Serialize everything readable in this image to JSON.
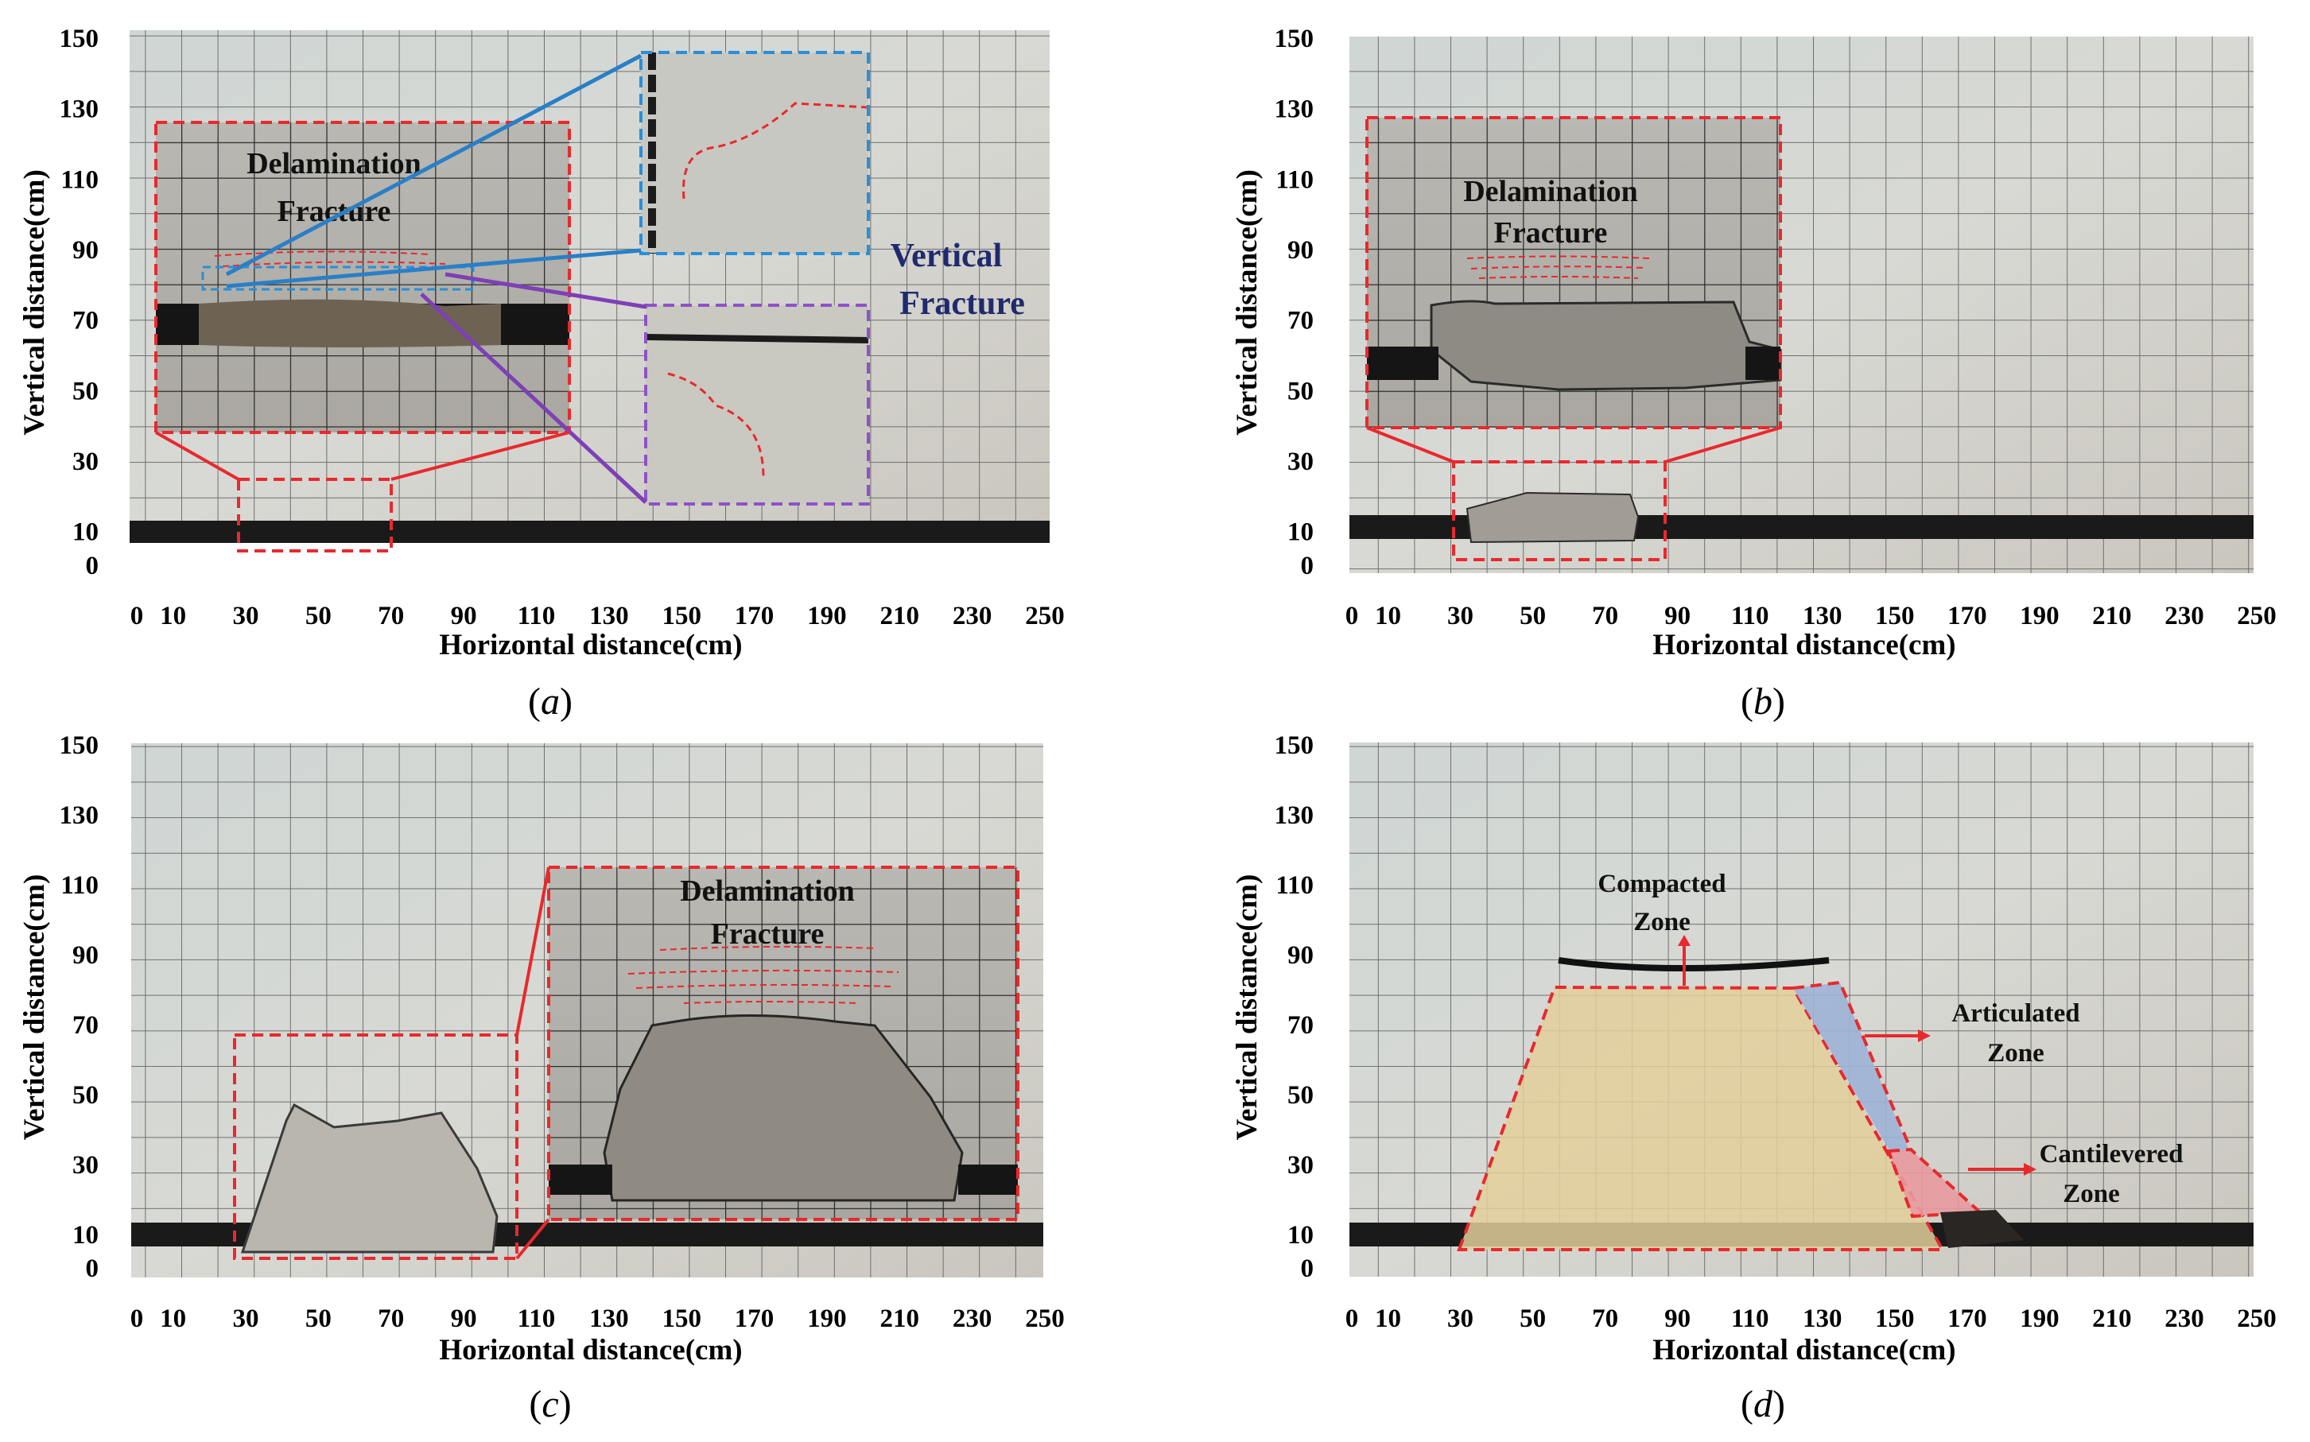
{
  "figure": {
    "x_axis_label": "Horizontal distance(cm)",
    "y_axis_label": "Vertical distance(cm)",
    "x_ticks": [
      "0",
      "10",
      "30",
      "50",
      "70",
      "90",
      "110",
      "130",
      "150",
      "170",
      "190",
      "210",
      "230",
      "250"
    ],
    "y_ticks": [
      "150",
      "130",
      "110",
      "90",
      "70",
      "50",
      "30",
      "10",
      "0"
    ],
    "panels": [
      {
        "caption_open": "(",
        "caption_letter": "a",
        "caption_close": ")",
        "labels": {
          "delam_line1": "Delamination",
          "delam_line2": "Fracture",
          "vert_line1": "Vertical",
          "vert_line2": "Fracture"
        }
      },
      {
        "caption_open": "(",
        "caption_letter": "b",
        "caption_close": ")",
        "labels": {
          "delam_line1": "Delamination",
          "delam_line2": "Fracture"
        }
      },
      {
        "caption_open": "(",
        "caption_letter": "c",
        "caption_close": ")",
        "labels": {
          "delam_line1": "Delamination",
          "delam_line2": "Fracture"
        }
      },
      {
        "caption_open": "(",
        "caption_letter": "d",
        "caption_close": ")",
        "labels": {
          "compacted_1": "Compacted",
          "compacted_2": "Zone",
          "articulated_1": "Articulated",
          "articulated_2": "Zone",
          "cantilevered_1": "Cantilevered",
          "cantilevered_2": "Zone"
        }
      }
    ]
  },
  "colors": {
    "red_dash": "#e8292d",
    "blue_dash": "#2a8fd8",
    "purple_dash": "#8e52c9",
    "blue_line": "#2a7fc7",
    "purple_line": "#7e3fb7",
    "coal": "#1a1a1a",
    "compacted": "#e3cf9a",
    "articulated": "#9fb3d6",
    "cantilevered": "#e89aa0"
  }
}
